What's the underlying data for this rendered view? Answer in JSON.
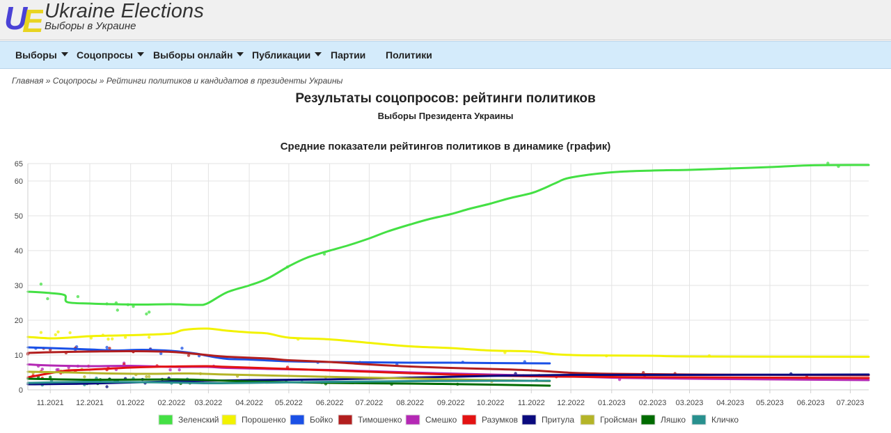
{
  "header": {
    "logo_letters": "UE",
    "site_title": "Ukraine Elections",
    "site_subtitle": "Выборы в Украине"
  },
  "nav": {
    "items": [
      {
        "label": "Выборы",
        "dropdown": true
      },
      {
        "label": "Соцопросы",
        "dropdown": true
      },
      {
        "label": "Выборы онлайн",
        "dropdown": true
      },
      {
        "label": "Публикации",
        "dropdown": true
      },
      {
        "label": "Партии",
        "dropdown": false
      },
      {
        "label": "Политики",
        "dropdown": false
      }
    ]
  },
  "breadcrumb": {
    "home": "Главная",
    "polls": "Соцопросы",
    "current": "Рейтинги политиков и кандидатов в президенты Украины",
    "separator": "»"
  },
  "page": {
    "title": "Результаты соцопросов: рейтинги политиков",
    "subtitle": "Выборы Президента Украины"
  },
  "chart_data": {
    "type": "line",
    "title": "Средние показатели рейтингов политиков в динамике (график)",
    "xlabel": "",
    "ylabel": "",
    "x_ticks": [
      "11.2021",
      "12.2021",
      "01.2022",
      "02.2022",
      "03.2022",
      "04.2022",
      "05.2022",
      "06.2022",
      "07.2022",
      "08.2022",
      "09.2022",
      "10.2022",
      "11.2022",
      "12.2022",
      "01.2023",
      "02.2023",
      "03.2023",
      "04.2023",
      "05.2023",
      "06.2023",
      "07.2023"
    ],
    "y_ticks": [
      0,
      10,
      20,
      30,
      40,
      50,
      60,
      65
    ],
    "ylim": [
      0,
      65
    ],
    "xlim": [
      "2021-10-15",
      "2023-07-15"
    ],
    "grid": true,
    "legend_position": "bottom",
    "series": [
      {
        "name": "Зеленский",
        "color": "#44e044",
        "points": [
          [
            "2021-10-15",
            28.2
          ],
          [
            "2021-11-01",
            27.8
          ],
          [
            "2021-11-12",
            27.2
          ],
          [
            "2021-11-14",
            25.2
          ],
          [
            "2021-12-01",
            24.8
          ],
          [
            "2021-12-20",
            24.6
          ],
          [
            "2022-01-10",
            24.5
          ],
          [
            "2022-02-01",
            24.6
          ],
          [
            "2022-02-20",
            24.4
          ],
          [
            "2022-02-28",
            24.8
          ],
          [
            "2022-03-15",
            28.0
          ],
          [
            "2022-04-01",
            30.0
          ],
          [
            "2022-04-15",
            32.0
          ],
          [
            "2022-05-01",
            35.5
          ],
          [
            "2022-05-15",
            38.0
          ],
          [
            "2022-06-01",
            40.0
          ],
          [
            "2022-06-15",
            41.5
          ],
          [
            "2022-07-01",
            43.5
          ],
          [
            "2022-07-15",
            45.5
          ],
          [
            "2022-08-01",
            47.5
          ],
          [
            "2022-08-15",
            49.0
          ],
          [
            "2022-09-01",
            50.5
          ],
          [
            "2022-09-15",
            52.0
          ],
          [
            "2022-10-01",
            53.5
          ],
          [
            "2022-10-15",
            55.0
          ],
          [
            "2022-11-01",
            56.5
          ],
          [
            "2022-11-10",
            57.8
          ],
          [
            "2022-11-20",
            59.5
          ],
          [
            "2022-12-01",
            61.0
          ],
          [
            "2023-01-01",
            62.5
          ],
          [
            "2023-02-01",
            63.0
          ],
          [
            "2023-03-01",
            63.2
          ],
          [
            "2023-04-01",
            63.6
          ],
          [
            "2023-05-01",
            64.0
          ],
          [
            "2023-06-01",
            64.5
          ],
          [
            "2023-07-15",
            64.6
          ]
        ]
      },
      {
        "name": "Порошенко",
        "color": "#f2f200",
        "points": [
          [
            "2021-10-15",
            15.2
          ],
          [
            "2021-11-01",
            14.8
          ],
          [
            "2021-11-15",
            15.0
          ],
          [
            "2021-12-01",
            15.4
          ],
          [
            "2021-12-20",
            15.6
          ],
          [
            "2022-01-10",
            15.8
          ],
          [
            "2022-02-01",
            16.2
          ],
          [
            "2022-02-10",
            17.2
          ],
          [
            "2022-02-28",
            17.6
          ],
          [
            "2022-03-15",
            17.0
          ],
          [
            "2022-04-01",
            16.5
          ],
          [
            "2022-04-15",
            16.2
          ],
          [
            "2022-05-01",
            15.0
          ],
          [
            "2022-06-01",
            14.5
          ],
          [
            "2022-07-01",
            13.5
          ],
          [
            "2022-08-01",
            12.5
          ],
          [
            "2022-09-01",
            12.0
          ],
          [
            "2022-10-01",
            11.3
          ],
          [
            "2022-11-01",
            11.0
          ],
          [
            "2022-11-20",
            10.2
          ],
          [
            "2022-12-15",
            9.9
          ],
          [
            "2023-02-01",
            9.8
          ],
          [
            "2023-03-01",
            9.6
          ],
          [
            "2023-07-15",
            9.5
          ]
        ]
      },
      {
        "name": "Бойко",
        "color": "#1a50e6",
        "points": [
          [
            "2021-10-15",
            12.2
          ],
          [
            "2021-11-01",
            12.0
          ],
          [
            "2021-12-01",
            11.6
          ],
          [
            "2021-12-20",
            11.3
          ],
          [
            "2022-01-10",
            11.5
          ],
          [
            "2022-02-01",
            11.2
          ],
          [
            "2022-02-20",
            10.4
          ],
          [
            "2022-02-28",
            9.8
          ],
          [
            "2022-03-15",
            8.9
          ],
          [
            "2022-04-01",
            8.7
          ],
          [
            "2022-05-01",
            8.2
          ],
          [
            "2022-06-01",
            8.0
          ],
          [
            "2022-07-01",
            7.9
          ],
          [
            "2022-08-01",
            7.8
          ],
          [
            "2022-09-01",
            7.8
          ],
          [
            "2022-10-01",
            7.7
          ],
          [
            "2022-11-15",
            7.6
          ]
        ]
      },
      {
        "name": "Тимошенко",
        "color": "#b21e1e",
        "points": [
          [
            "2021-10-15",
            10.6
          ],
          [
            "2021-11-01",
            10.8
          ],
          [
            "2021-12-01",
            11.0
          ],
          [
            "2022-01-01",
            11.1
          ],
          [
            "2022-02-01",
            10.9
          ],
          [
            "2022-02-28",
            10.0
          ],
          [
            "2022-03-15",
            9.5
          ],
          [
            "2022-04-15",
            9.0
          ],
          [
            "2022-05-01",
            8.5
          ],
          [
            "2022-06-01",
            8.0
          ],
          [
            "2022-07-01",
            7.3
          ],
          [
            "2022-08-01",
            6.7
          ],
          [
            "2022-09-01",
            6.3
          ],
          [
            "2022-10-01",
            6.0
          ],
          [
            "2022-11-01",
            5.6
          ],
          [
            "2022-12-01",
            4.9
          ],
          [
            "2023-01-01",
            4.6
          ],
          [
            "2023-03-01",
            4.4
          ],
          [
            "2023-07-15",
            4.2
          ]
        ]
      },
      {
        "name": "Смешко",
        "color": "#b428b4",
        "points": [
          [
            "2021-10-15",
            7.3
          ],
          [
            "2021-11-01",
            7.0
          ],
          [
            "2021-12-01",
            6.8
          ],
          [
            "2022-01-01",
            6.9
          ],
          [
            "2022-02-01",
            6.6
          ],
          [
            "2022-02-28",
            6.6
          ],
          [
            "2022-03-15",
            6.3
          ],
          [
            "2022-04-15",
            6.0
          ],
          [
            "2022-06-01",
            5.7
          ],
          [
            "2022-08-01",
            5.0
          ],
          [
            "2022-10-01",
            4.4
          ],
          [
            "2022-11-15",
            4.0
          ],
          [
            "2023-01-01",
            3.5
          ],
          [
            "2023-03-01",
            3.2
          ],
          [
            "2023-07-15",
            2.8
          ]
        ]
      },
      {
        "name": "Разумков",
        "color": "#e31212",
        "points": [
          [
            "2021-10-15",
            3.6
          ],
          [
            "2021-11-01",
            4.8
          ],
          [
            "2021-11-15",
            5.6
          ],
          [
            "2021-12-01",
            5.8
          ],
          [
            "2022-01-01",
            6.4
          ],
          [
            "2022-02-01",
            6.7
          ],
          [
            "2022-02-28",
            6.8
          ],
          [
            "2022-03-15",
            6.6
          ],
          [
            "2022-05-01",
            6.0
          ],
          [
            "2022-07-01",
            5.2
          ],
          [
            "2022-09-01",
            4.4
          ],
          [
            "2022-11-01",
            3.9
          ],
          [
            "2023-01-01",
            3.7
          ],
          [
            "2023-03-01",
            3.6
          ],
          [
            "2023-07-15",
            3.4
          ]
        ]
      },
      {
        "name": "Притула",
        "color": "#0a0a7e",
        "points": [
          [
            "2021-10-15",
            1.6
          ],
          [
            "2021-12-01",
            1.8
          ],
          [
            "2022-02-01",
            2.4
          ],
          [
            "2022-04-01",
            2.8
          ],
          [
            "2022-06-01",
            3.0
          ],
          [
            "2022-08-01",
            3.5
          ],
          [
            "2022-10-01",
            4.0
          ],
          [
            "2022-12-01",
            4.3
          ],
          [
            "2023-03-01",
            4.3
          ],
          [
            "2023-07-15",
            4.4
          ]
        ]
      },
      {
        "name": "Гройсман",
        "color": "#b4b428",
        "points": [
          [
            "2021-10-15",
            5.2
          ],
          [
            "2021-11-15",
            5.0
          ],
          [
            "2021-12-15",
            4.7
          ],
          [
            "2022-01-15",
            4.6
          ],
          [
            "2022-02-15",
            4.7
          ],
          [
            "2022-03-15",
            4.4
          ],
          [
            "2022-05-01",
            4.0
          ],
          [
            "2022-07-01",
            3.5
          ],
          [
            "2022-09-01",
            3.0
          ],
          [
            "2022-11-15",
            2.5
          ]
        ]
      },
      {
        "name": "Ляшко",
        "color": "#006b00",
        "points": [
          [
            "2021-10-15",
            3.2
          ],
          [
            "2021-12-01",
            2.9
          ],
          [
            "2022-02-01",
            3.0
          ],
          [
            "2022-02-28",
            2.8
          ],
          [
            "2022-04-01",
            2.4
          ],
          [
            "2022-06-01",
            2.0
          ],
          [
            "2022-08-01",
            1.8
          ],
          [
            "2022-10-01",
            1.5
          ],
          [
            "2022-11-15",
            1.2
          ]
        ]
      },
      {
        "name": "Кличко",
        "color": "#28908e",
        "points": [
          [
            "2021-10-15",
            2.0
          ],
          [
            "2021-12-01",
            2.3
          ],
          [
            "2022-02-01",
            2.1
          ],
          [
            "2022-02-28",
            1.9
          ],
          [
            "2022-04-01",
            2.0
          ],
          [
            "2022-06-01",
            2.3
          ],
          [
            "2022-08-01",
            2.5
          ],
          [
            "2022-10-01",
            2.6
          ],
          [
            "2022-11-15",
            2.6
          ]
        ]
      }
    ]
  }
}
